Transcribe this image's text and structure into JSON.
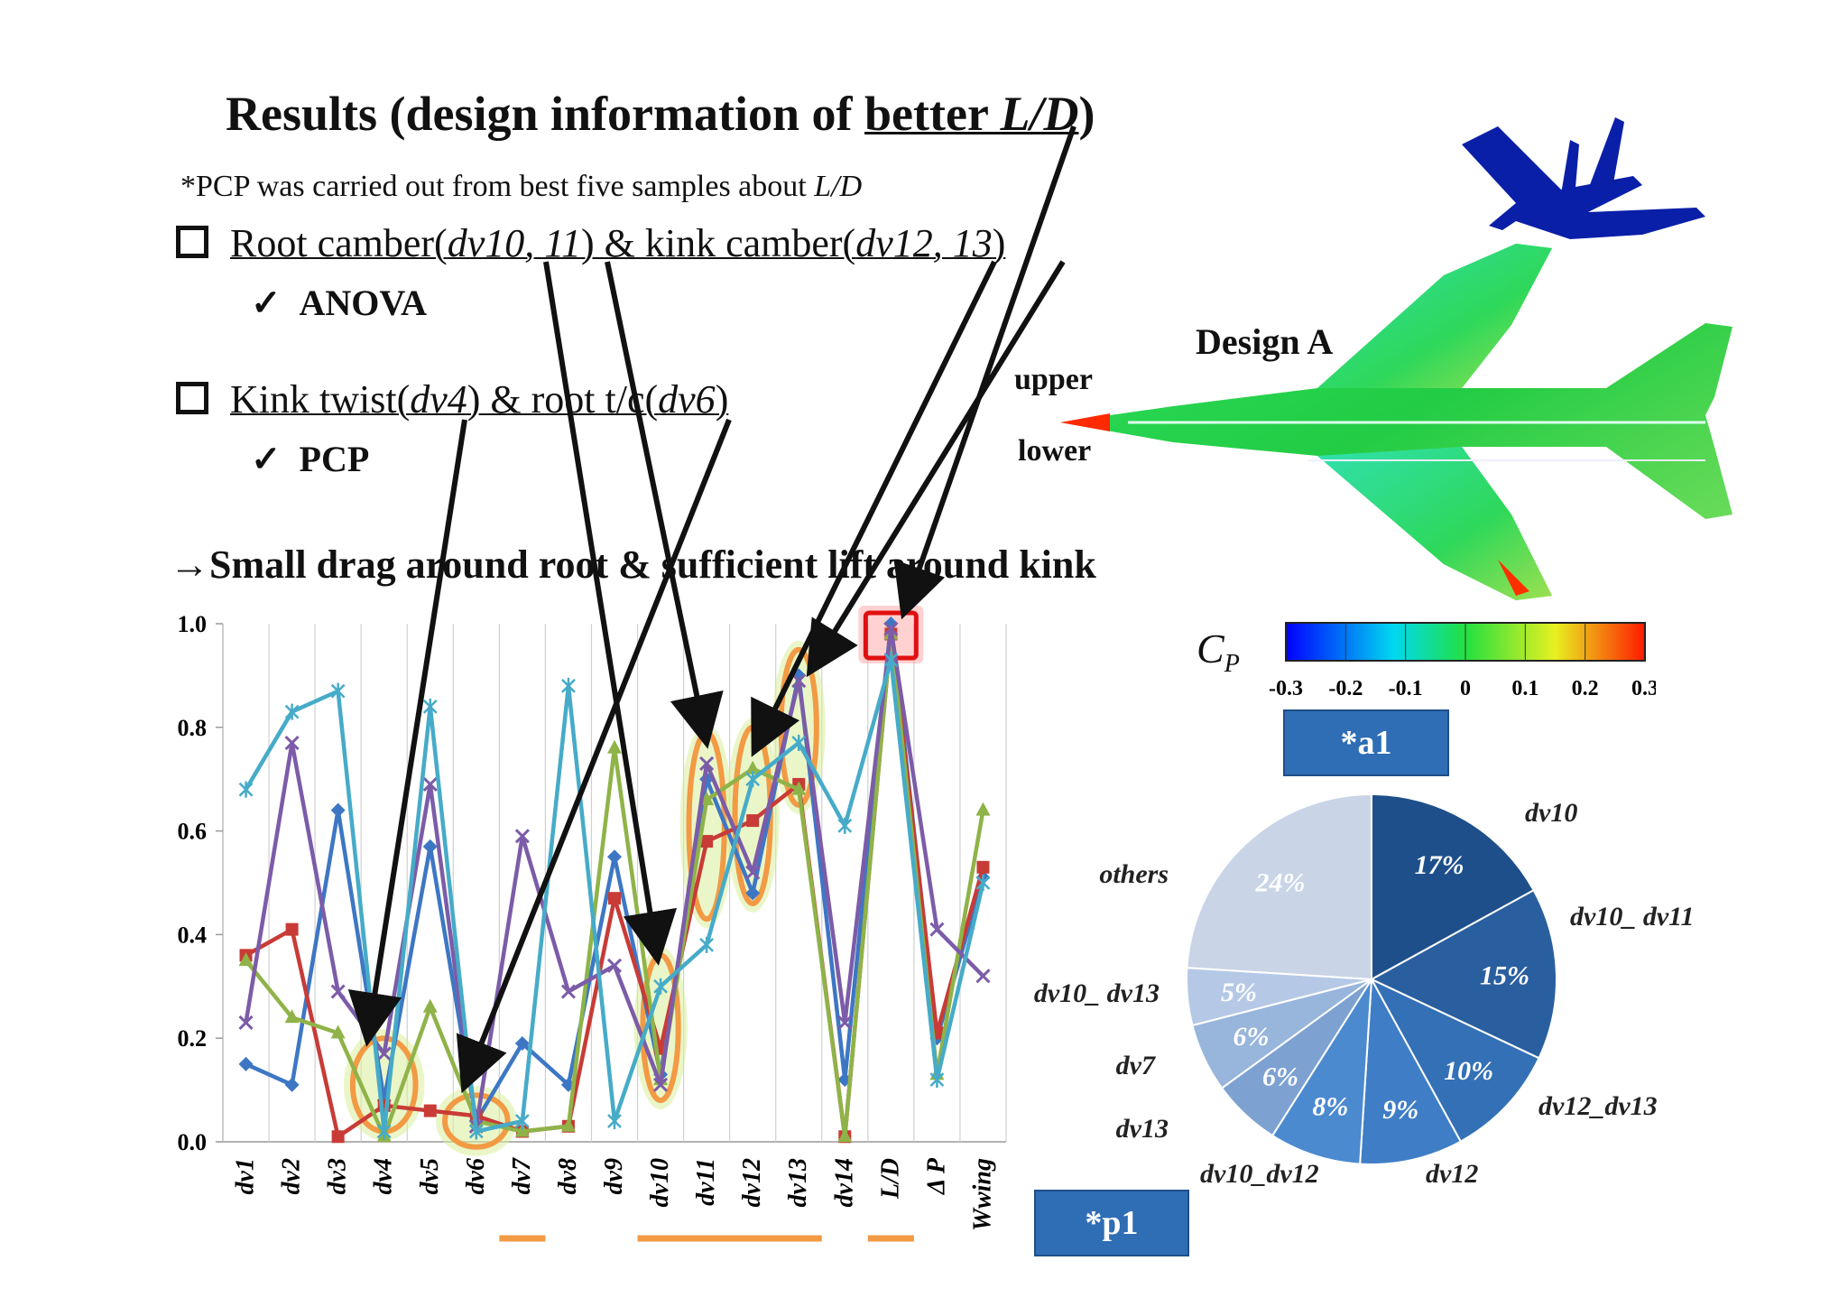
{
  "slide": {
    "title_prefix": "Results (design information of ",
    "title_underlined": "better ",
    "title_italic": "L/D",
    "title_suffix": ")",
    "note_prefix": "*PCP was carried out from best five samples about ",
    "note_italic": "L/D",
    "bullet1": {
      "a": "Root camber(",
      "b": "dv10, 11",
      "c": ") & kink camber(",
      "d": "dv12, 13",
      "e": ")"
    },
    "bullet1_check": "ANOVA",
    "bullet2": {
      "a": "Kink twist(",
      "b": "dv4",
      "c": ") & root t/c(",
      "d": "dv6",
      "e": ")"
    },
    "bullet2_check": "PCP",
    "conclusion": "→Small drag around root & sufficient lift around kink",
    "check_symbol": "✓"
  },
  "design": {
    "label": "Design A",
    "upper": "upper",
    "lower": "lower",
    "cp_symbol": "C",
    "cp_sub": "P",
    "colorbar_ticks": [
      "-0.3",
      "-0.2",
      "-0.1",
      "0",
      "0.1",
      "0.2",
      "0.3"
    ]
  },
  "tags": {
    "a1": "*a1",
    "p1": "*p1"
  },
  "chart_data": [
    {
      "type": "line",
      "categories": [
        "dv1",
        "dv2",
        "dv3",
        "dv4",
        "dv5",
        "dv6",
        "dv7",
        "dv8",
        "dv9",
        "dv10",
        "dv11",
        "dv12",
        "dv13",
        "dv14",
        "L/D",
        "Δ P",
        "Wwing"
      ],
      "ylim": [
        0,
        1.0
      ],
      "yticks": [
        "0.0",
        "0.2",
        "0.4",
        "0.6",
        "0.8",
        "1.0"
      ],
      "grid": true,
      "series": [
        {
          "color": "#3d77c4",
          "marker": "diamond",
          "values": [
            0.15,
            0.11,
            0.64,
            0.08,
            0.57,
            0.04,
            0.19,
            0.11,
            0.55,
            0.13,
            0.7,
            0.48,
            0.9,
            0.12,
            1.0,
            0.2,
            0.51
          ]
        },
        {
          "color": "#c83b36",
          "marker": "square",
          "values": [
            0.36,
            0.41,
            0.01,
            0.07,
            0.06,
            0.05,
            0.02,
            0.03,
            0.47,
            0.18,
            0.58,
            0.62,
            0.69,
            0.01,
            0.98,
            0.21,
            0.53
          ]
        },
        {
          "color": "#8fb348",
          "marker": "triangle",
          "values": [
            0.35,
            0.24,
            0.21,
            0.01,
            0.26,
            0.04,
            0.02,
            0.03,
            0.76,
            0.12,
            0.66,
            0.72,
            0.68,
            0.01,
            0.98,
            0.13,
            0.64
          ]
        },
        {
          "color": "#7c5ca8",
          "marker": "x",
          "values": [
            0.23,
            0.77,
            0.29,
            0.17,
            0.69,
            0.03,
            0.59,
            0.29,
            0.34,
            0.11,
            0.73,
            0.52,
            0.89,
            0.23,
            0.99,
            0.41,
            0.32
          ]
        },
        {
          "color": "#46abc8",
          "marker": "star",
          "values": [
            0.68,
            0.83,
            0.87,
            0.02,
            0.84,
            0.02,
            0.04,
            0.88,
            0.04,
            0.3,
            0.38,
            0.7,
            0.77,
            0.61,
            0.93,
            0.12,
            0.5
          ]
        }
      ],
      "highlight_ellipses": [
        "dv4",
        "dv6",
        "dv10",
        "dv11",
        "dv12",
        "dv13"
      ],
      "highlight_box": "L/D",
      "underline_groups": [
        [
          "dv7"
        ],
        [
          "dv10",
          "dv13"
        ],
        [
          "L/D"
        ]
      ]
    },
    {
      "type": "pie",
      "slices": [
        {
          "label": "dv10",
          "value": 17,
          "text": "17%",
          "color": "#1e4f8a"
        },
        {
          "label": "dv10_ dv11",
          "value": 15,
          "text": "15%",
          "color": "#2a5f9f"
        },
        {
          "label": "dv12_dv13",
          "value": 10,
          "text": "10%",
          "color": "#3470b6"
        },
        {
          "label": "dv12",
          "value": 9,
          "text": "9%",
          "color": "#3f7ec6"
        },
        {
          "label": "dv10_dv12",
          "value": 8,
          "text": "8%",
          "color": "#4c8ad0"
        },
        {
          "label": "dv13",
          "value": 6,
          "text": "6%",
          "color": "#7da2d2"
        },
        {
          "label": "dv7",
          "value": 6,
          "text": "6%",
          "color": "#98b5dc"
        },
        {
          "label": "dv10_ dv13",
          "value": 5,
          "text": "5%",
          "color": "#b5c9e6"
        },
        {
          "label": "others",
          "value": 24,
          "text": "24%",
          "color": "#c9d4e7"
        }
      ]
    }
  ]
}
